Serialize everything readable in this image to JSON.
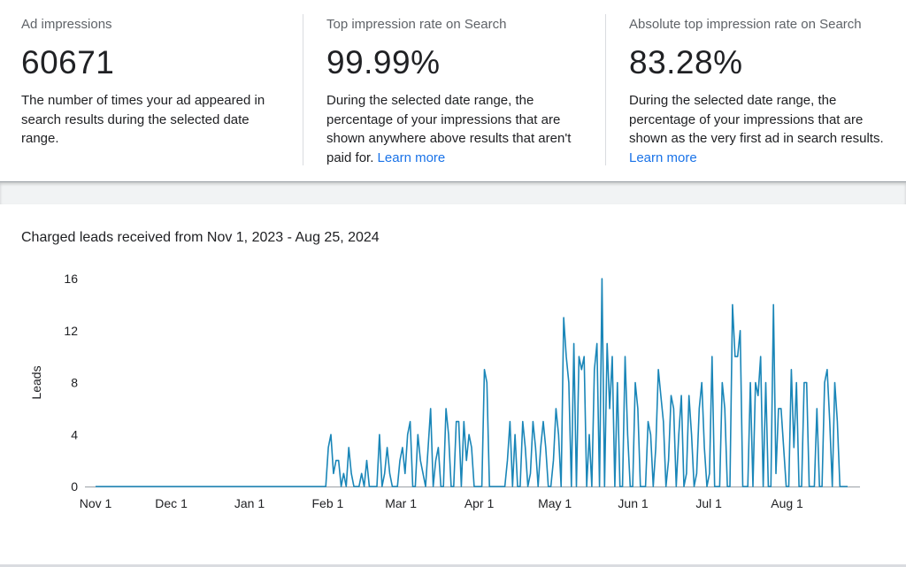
{
  "stats": [
    {
      "label": "Ad impressions",
      "value": "60671",
      "description": "The number of times your ad appeared in search results during the selected date range.",
      "link": ""
    },
    {
      "label": "Top impression rate on Search",
      "value": "99.99%",
      "description": "During the selected date range, the percentage of your impressions that are shown anywhere above results that aren't paid for.",
      "link": "Learn more"
    },
    {
      "label": "Absolute top impression rate on Search",
      "value": "83.28%",
      "description": "During the selected date range, the percentage of your impressions that are shown as the very first ad in search results.",
      "link": "Learn more"
    }
  ],
  "colors": {
    "line": "#1a86b8",
    "link": "#1a73e8",
    "axis": "#9aa0a6"
  },
  "chart_data": {
    "type": "line",
    "title": "Charged leads received from Nov 1, 2023 - Aug 25, 2024",
    "xlabel": "",
    "ylabel": "Leads",
    "x_ticks": [
      "Nov 1",
      "Dec 1",
      "Jan 1",
      "Feb 1",
      "Mar 1",
      "Apr 1",
      "May 1",
      "Jun 1",
      "Jul 1",
      "Aug 1"
    ],
    "y_ticks": [
      "0",
      "4",
      "8",
      "12",
      "16"
    ],
    "ylim": [
      0,
      16
    ],
    "x_start": "2023-11-01",
    "x_end": "2024-08-25",
    "grid": false,
    "series": [
      {
        "name": "",
        "values": [
          0,
          0,
          0,
          0,
          0,
          0,
          0,
          0,
          0,
          0,
          0,
          0,
          0,
          0,
          0,
          0,
          0,
          0,
          0,
          0,
          0,
          0,
          0,
          0,
          0,
          0,
          0,
          0,
          0,
          0,
          0,
          0,
          0,
          0,
          0,
          0,
          0,
          0,
          0,
          0,
          0,
          0,
          0,
          0,
          0,
          0,
          0,
          0,
          0,
          0,
          0,
          0,
          0,
          0,
          0,
          0,
          0,
          0,
          0,
          0,
          0,
          0,
          0,
          0,
          0,
          0,
          0,
          0,
          0,
          0,
          0,
          0,
          0,
          0,
          0,
          0,
          0,
          0,
          0,
          0,
          0,
          0,
          0,
          0,
          0,
          0,
          0,
          0,
          0,
          0,
          0,
          3,
          4,
          1,
          2,
          2,
          0,
          1,
          0,
          3,
          1,
          0,
          0,
          0,
          1,
          0,
          2,
          0,
          0,
          0,
          0,
          4,
          0,
          1,
          3,
          1,
          0,
          0,
          0,
          2,
          3,
          1,
          4,
          5,
          0,
          0,
          4,
          2,
          1,
          0,
          3,
          6,
          0,
          2,
          3,
          0,
          0,
          6,
          4,
          0,
          0,
          5,
          5,
          0,
          5,
          2,
          4,
          3,
          0,
          0,
          0,
          0,
          9,
          8,
          0,
          0,
          0,
          0,
          0,
          0,
          0,
          2,
          5,
          0,
          4,
          0,
          0,
          5,
          3,
          0,
          1,
          5,
          3,
          0,
          3,
          5,
          3,
          0,
          0,
          2,
          6,
          4,
          0,
          13,
          10,
          8,
          0,
          11,
          0,
          10,
          9,
          10,
          0,
          4,
          0,
          9,
          11,
          0,
          16,
          0,
          11,
          6,
          10,
          0,
          8,
          0,
          0,
          10,
          4,
          0,
          0,
          8,
          6,
          0,
          0,
          0,
          5,
          4,
          0,
          3,
          9,
          7,
          5,
          0,
          2,
          7,
          6,
          0,
          4,
          7,
          0,
          1,
          7,
          4,
          0,
          1,
          6,
          8,
          3,
          0,
          1,
          10,
          0,
          0,
          0,
          8,
          6,
          0,
          0,
          14,
          10,
          10,
          12,
          0,
          0,
          0,
          8,
          0,
          8,
          7,
          10,
          0,
          8,
          0,
          0,
          14,
          1,
          6,
          6,
          3,
          0,
          0,
          9,
          3,
          8,
          0,
          0,
          8,
          8,
          0,
          0,
          0,
          6,
          0,
          0,
          8,
          9,
          5,
          0,
          8,
          5,
          0,
          0,
          0,
          0
        ]
      }
    ]
  }
}
